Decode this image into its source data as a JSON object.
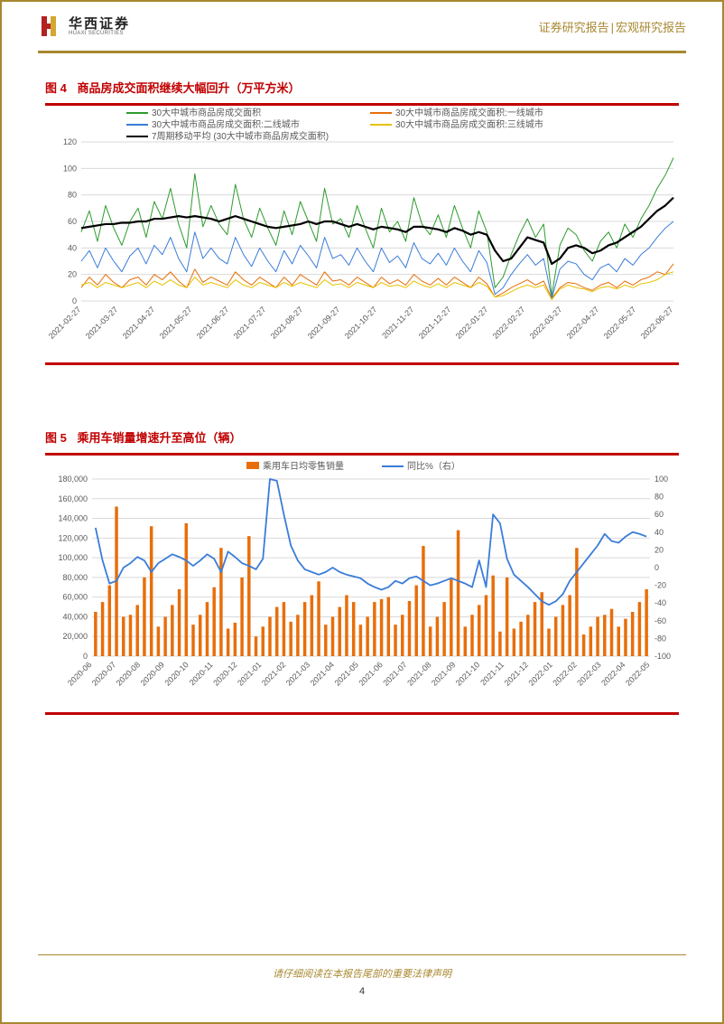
{
  "header": {
    "logo_cn": "华西证券",
    "logo_en": "HUAXI SECURITIES",
    "right_a": "证券研究报告",
    "right_b": "宏观研究报告"
  },
  "footer": {
    "legal": "请仔细阅读在本报告尾部的重要法律声明",
    "page": "4"
  },
  "chart1": {
    "type": "line",
    "fig_num": "图 4",
    "fig_txt": "商品房成交面积继续大幅回升（万平方米）",
    "background_color": "#ffffff",
    "grid_color": "#d9d9d9",
    "ylim": [
      0,
      120
    ],
    "ytick_step": 20,
    "yticks": [
      0,
      20,
      40,
      60,
      80,
      100,
      120
    ],
    "xlabels": [
      "2021-02-27",
      "2021-03-27",
      "2021-04-27",
      "2021-05-27",
      "2021-06-27",
      "2021-07-27",
      "2021-08-27",
      "2021-09-27",
      "2021-10-27",
      "2021-11-27",
      "2021-12-27",
      "2022-01-27",
      "2022-02-27",
      "2022-03-27",
      "2022-04-27",
      "2022-05-27",
      "2022-06-27"
    ],
    "tick_fontsize": 9,
    "xlabel_rotation": -45,
    "series": [
      {
        "name": "30大中城市商品房成交面积",
        "color": "#2e9b2e",
        "width": 1.0,
        "y": [
          52,
          68,
          45,
          72,
          55,
          42,
          60,
          70,
          48,
          75,
          62,
          85,
          58,
          40,
          96,
          56,
          72,
          58,
          50,
          88,
          62,
          48,
          70,
          55,
          42,
          68,
          50,
          75,
          60,
          45,
          85,
          58,
          62,
          48,
          72,
          55,
          40,
          70,
          52,
          60,
          45,
          78,
          58,
          50,
          65,
          48,
          72,
          55,
          40,
          68,
          52,
          10,
          18,
          35,
          50,
          62,
          48,
          58,
          4,
          42,
          55,
          50,
          38,
          30,
          45,
          52,
          40,
          58,
          48,
          62,
          72,
          85,
          95,
          108
        ]
      },
      {
        "name": "30大中城市商品房成交面积:一线城市",
        "color": "#e86e0a",
        "width": 1.0,
        "y": [
          10,
          18,
          12,
          20,
          14,
          10,
          16,
          18,
          12,
          20,
          16,
          22,
          15,
          10,
          24,
          14,
          18,
          15,
          12,
          22,
          16,
          12,
          18,
          14,
          10,
          18,
          12,
          20,
          16,
          12,
          22,
          15,
          16,
          12,
          18,
          14,
          10,
          18,
          13,
          16,
          12,
          20,
          15,
          12,
          17,
          12,
          18,
          14,
          10,
          18,
          13,
          3,
          6,
          10,
          13,
          16,
          12,
          15,
          2,
          10,
          14,
          13,
          10,
          8,
          12,
          14,
          10,
          15,
          12,
          16,
          18,
          22,
          20,
          28
        ]
      },
      {
        "name": "30大中城市商品房成交面积:二线城市",
        "color": "#3a7dd8",
        "width": 1.0,
        "y": [
          30,
          38,
          25,
          40,
          30,
          22,
          34,
          40,
          28,
          42,
          35,
          48,
          32,
          22,
          52,
          32,
          40,
          32,
          28,
          48,
          35,
          26,
          40,
          30,
          22,
          38,
          28,
          42,
          34,
          25,
          48,
          32,
          35,
          27,
          40,
          30,
          22,
          40,
          29,
          34,
          25,
          44,
          32,
          28,
          36,
          27,
          40,
          30,
          22,
          38,
          29,
          5,
          10,
          20,
          28,
          35,
          27,
          32,
          2,
          24,
          30,
          28,
          20,
          16,
          25,
          28,
          22,
          32,
          27,
          35,
          40,
          48,
          55,
          60
        ]
      },
      {
        "name": "30大中城市商品房成交面积:三线城市",
        "color": "#e6c200",
        "width": 1.0,
        "y": [
          12,
          14,
          10,
          14,
          12,
          10,
          12,
          14,
          10,
          15,
          12,
          16,
          12,
          10,
          18,
          12,
          14,
          12,
          10,
          16,
          12,
          10,
          14,
          12,
          10,
          14,
          11,
          14,
          12,
          10,
          16,
          12,
          13,
          10,
          14,
          12,
          10,
          14,
          11,
          12,
          10,
          15,
          12,
          10,
          13,
          10,
          14,
          12,
          10,
          14,
          11,
          3,
          4,
          7,
          10,
          12,
          10,
          12,
          1,
          9,
          12,
          10,
          9,
          7,
          10,
          11,
          9,
          12,
          10,
          13,
          14,
          16,
          20,
          22
        ]
      },
      {
        "name": "7周期移动平均 (30大中城市商品房成交面积)",
        "color": "#000000",
        "width": 2.2,
        "y": [
          55,
          56,
          57,
          58,
          58,
          59,
          59,
          60,
          60,
          62,
          62,
          63,
          64,
          63,
          64,
          63,
          62,
          60,
          62,
          64,
          62,
          60,
          58,
          56,
          55,
          56,
          57,
          58,
          60,
          58,
          60,
          60,
          58,
          56,
          58,
          56,
          54,
          56,
          55,
          54,
          52,
          56,
          56,
          55,
          54,
          52,
          55,
          53,
          50,
          52,
          50,
          38,
          30,
          32,
          40,
          48,
          46,
          44,
          28,
          32,
          40,
          42,
          40,
          36,
          38,
          42,
          44,
          48,
          52,
          56,
          62,
          68,
          72,
          78
        ]
      }
    ]
  },
  "chart2": {
    "type": "combo-bar-line",
    "fig_num": "图 5",
    "fig_txt": "乘用车销量增速升至高位（辆）",
    "background_color": "#ffffff",
    "grid_color": "#d9d9d9",
    "y1": {
      "lim": [
        0,
        180000
      ],
      "ticks": [
        0,
        20000,
        40000,
        60000,
        80000,
        100000,
        120000,
        140000,
        160000,
        180000
      ],
      "tick_labels": [
        "0",
        "20,000",
        "40,000",
        "60,000",
        "80,000",
        "100,000",
        "120,000",
        "140,000",
        "160,000",
        "180,000"
      ]
    },
    "y2": {
      "lim": [
        -100,
        100
      ],
      "ticks": [
        -100,
        -80,
        -60,
        -40,
        -20,
        0,
        20,
        40,
        60,
        80,
        100
      ]
    },
    "xlabels": [
      "2020-06",
      "2020-07",
      "2020-08",
      "2020-09",
      "2020-10",
      "2020-11",
      "2020-12",
      "2021-01",
      "2021-02",
      "2021-03",
      "2021-04",
      "2021-05",
      "2021-06",
      "2021-07",
      "2021-08",
      "2021-09",
      "2021-10",
      "2021-11",
      "2021-12",
      "2022-01",
      "2022-02",
      "2022-03",
      "2022-04",
      "2022-05"
    ],
    "tick_fontsize": 9,
    "xlabel_rotation": -45,
    "bar": {
      "name": "乘用车日均零售销量",
      "color": "#e86e0a",
      "width": 0.45,
      "y": [
        45000,
        55000,
        72000,
        152000,
        40000,
        42000,
        52000,
        80000,
        132000,
        30000,
        40000,
        52000,
        68000,
        135000,
        32000,
        42000,
        55000,
        70000,
        110000,
        28000,
        34000,
        80000,
        122000,
        20000,
        30000,
        40000,
        50000,
        55000,
        35000,
        42000,
        55000,
        62000,
        76000,
        32000,
        40000,
        50000,
        62000,
        55000,
        32000,
        40000,
        55000,
        58000,
        60000,
        32000,
        42000,
        56000,
        72000,
        112000,
        30000,
        40000,
        55000,
        78000,
        128000,
        30000,
        42000,
        52000,
        62000,
        82000,
        25000,
        80000,
        28000,
        35000,
        42000,
        55000,
        65000,
        28000,
        40000,
        52000,
        62000,
        110000,
        22000,
        30000,
        40000,
        42000,
        48000,
        30000,
        38000,
        45000,
        55000,
        68000
      ]
    },
    "line": {
      "name": "同比%（右）",
      "color": "#3a7dd8",
      "width": 1.8,
      "y": [
        45,
        8,
        -18,
        -15,
        0,
        5,
        12,
        8,
        -5,
        5,
        10,
        15,
        12,
        8,
        2,
        8,
        15,
        10,
        -5,
        18,
        12,
        5,
        2,
        -2,
        10,
        100,
        98,
        60,
        25,
        8,
        -2,
        -5,
        -8,
        -5,
        0,
        -5,
        -8,
        -10,
        -12,
        -18,
        -22,
        -25,
        -22,
        -15,
        -18,
        -12,
        -10,
        -15,
        -20,
        -18,
        -15,
        -12,
        -15,
        -18,
        -22,
        8,
        -22,
        60,
        50,
        10,
        -8,
        -15,
        -22,
        -30,
        -38,
        -42,
        -38,
        -30,
        -15,
        -5,
        5,
        15,
        25,
        38,
        30,
        28,
        35,
        40,
        38,
        35
      ]
    }
  }
}
